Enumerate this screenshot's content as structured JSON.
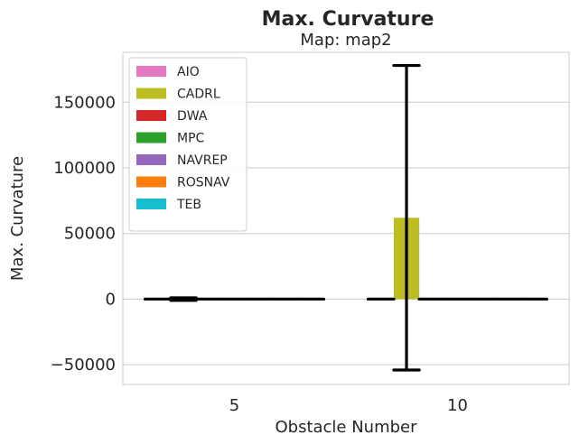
{
  "chart_data": {
    "type": "bar",
    "title": "Max. Curvature",
    "subtitle": "Map: map2",
    "xlabel": "Obstacle Number",
    "ylabel": "Max. Curvature",
    "categories": [
      "5",
      "10"
    ],
    "ylim": [
      -65000,
      188000
    ],
    "yticks": [
      -50000,
      0,
      50000,
      100000,
      150000
    ],
    "ytick_labels": [
      "−50000",
      "0",
      "50000",
      "100000",
      "150000"
    ],
    "grid": "horizontal",
    "legend_position": "top-left",
    "series": [
      {
        "name": "AIO",
        "color": "#e377c2",
        "values": [
          0,
          0
        ],
        "errors": [
          0,
          0
        ]
      },
      {
        "name": "CADRL",
        "color": "#bcbd22",
        "values": [
          0,
          62000
        ],
        "errors": [
          1000,
          116000
        ]
      },
      {
        "name": "DWA",
        "color": "#d62728",
        "values": [
          0,
          0
        ],
        "errors": [
          0,
          0
        ]
      },
      {
        "name": "MPC",
        "color": "#2ca02c",
        "values": [
          0,
          0
        ],
        "errors": [
          0,
          0
        ]
      },
      {
        "name": "NAVREP",
        "color": "#9467bd",
        "values": [
          0,
          0
        ],
        "errors": [
          0,
          0
        ]
      },
      {
        "name": "ROSNAV",
        "color": "#ff7f0e",
        "values": [
          0,
          0
        ],
        "errors": [
          0,
          0
        ]
      },
      {
        "name": "TEB",
        "color": "#17becf",
        "values": [
          0,
          0
        ],
        "errors": [
          0,
          0
        ]
      }
    ]
  }
}
